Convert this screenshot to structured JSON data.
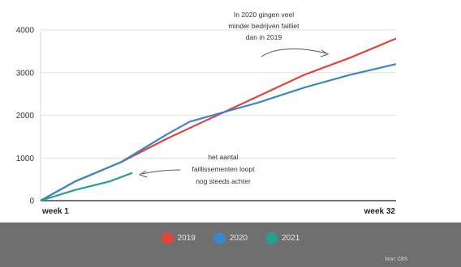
{
  "chart_data": {
    "type": "line",
    "title": "",
    "x_start_label": "week 1",
    "x_end_label": "week 32",
    "x_range": [
      1,
      32
    ],
    "ylim": [
      0,
      4000
    ],
    "y_ticks": [
      0,
      1000,
      2000,
      3000,
      4000
    ],
    "grid": true,
    "legend_position": "bottom",
    "series": [
      {
        "name": "2019",
        "color": "#e0443a",
        "x": [
          1,
          4,
          8,
          12,
          16,
          20,
          24,
          28,
          32
        ],
        "y": [
          0,
          450,
          900,
          1450,
          1950,
          2450,
          2950,
          3350,
          3800
        ]
      },
      {
        "name": "2020",
        "color": "#3a86c8",
        "x": [
          1,
          4,
          8,
          12,
          14,
          16,
          20,
          24,
          28,
          32
        ],
        "y": [
          0,
          450,
          900,
          1550,
          1850,
          2000,
          2300,
          2650,
          2950,
          3200
        ]
      },
      {
        "name": "2021",
        "color": "#26a08a",
        "x": [
          1,
          4,
          7,
          9
        ],
        "y": [
          0,
          250,
          450,
          650
        ]
      }
    ],
    "annotations": [
      {
        "lines": [
          "In 2020 gingen veel",
          "minder bedrijven failliet",
          "dan in 2019"
        ]
      },
      {
        "lines": [
          "het aantal",
          "faillissementen loopt",
          "nog steeds achter"
        ]
      }
    ]
  },
  "source": "bron: CBS"
}
